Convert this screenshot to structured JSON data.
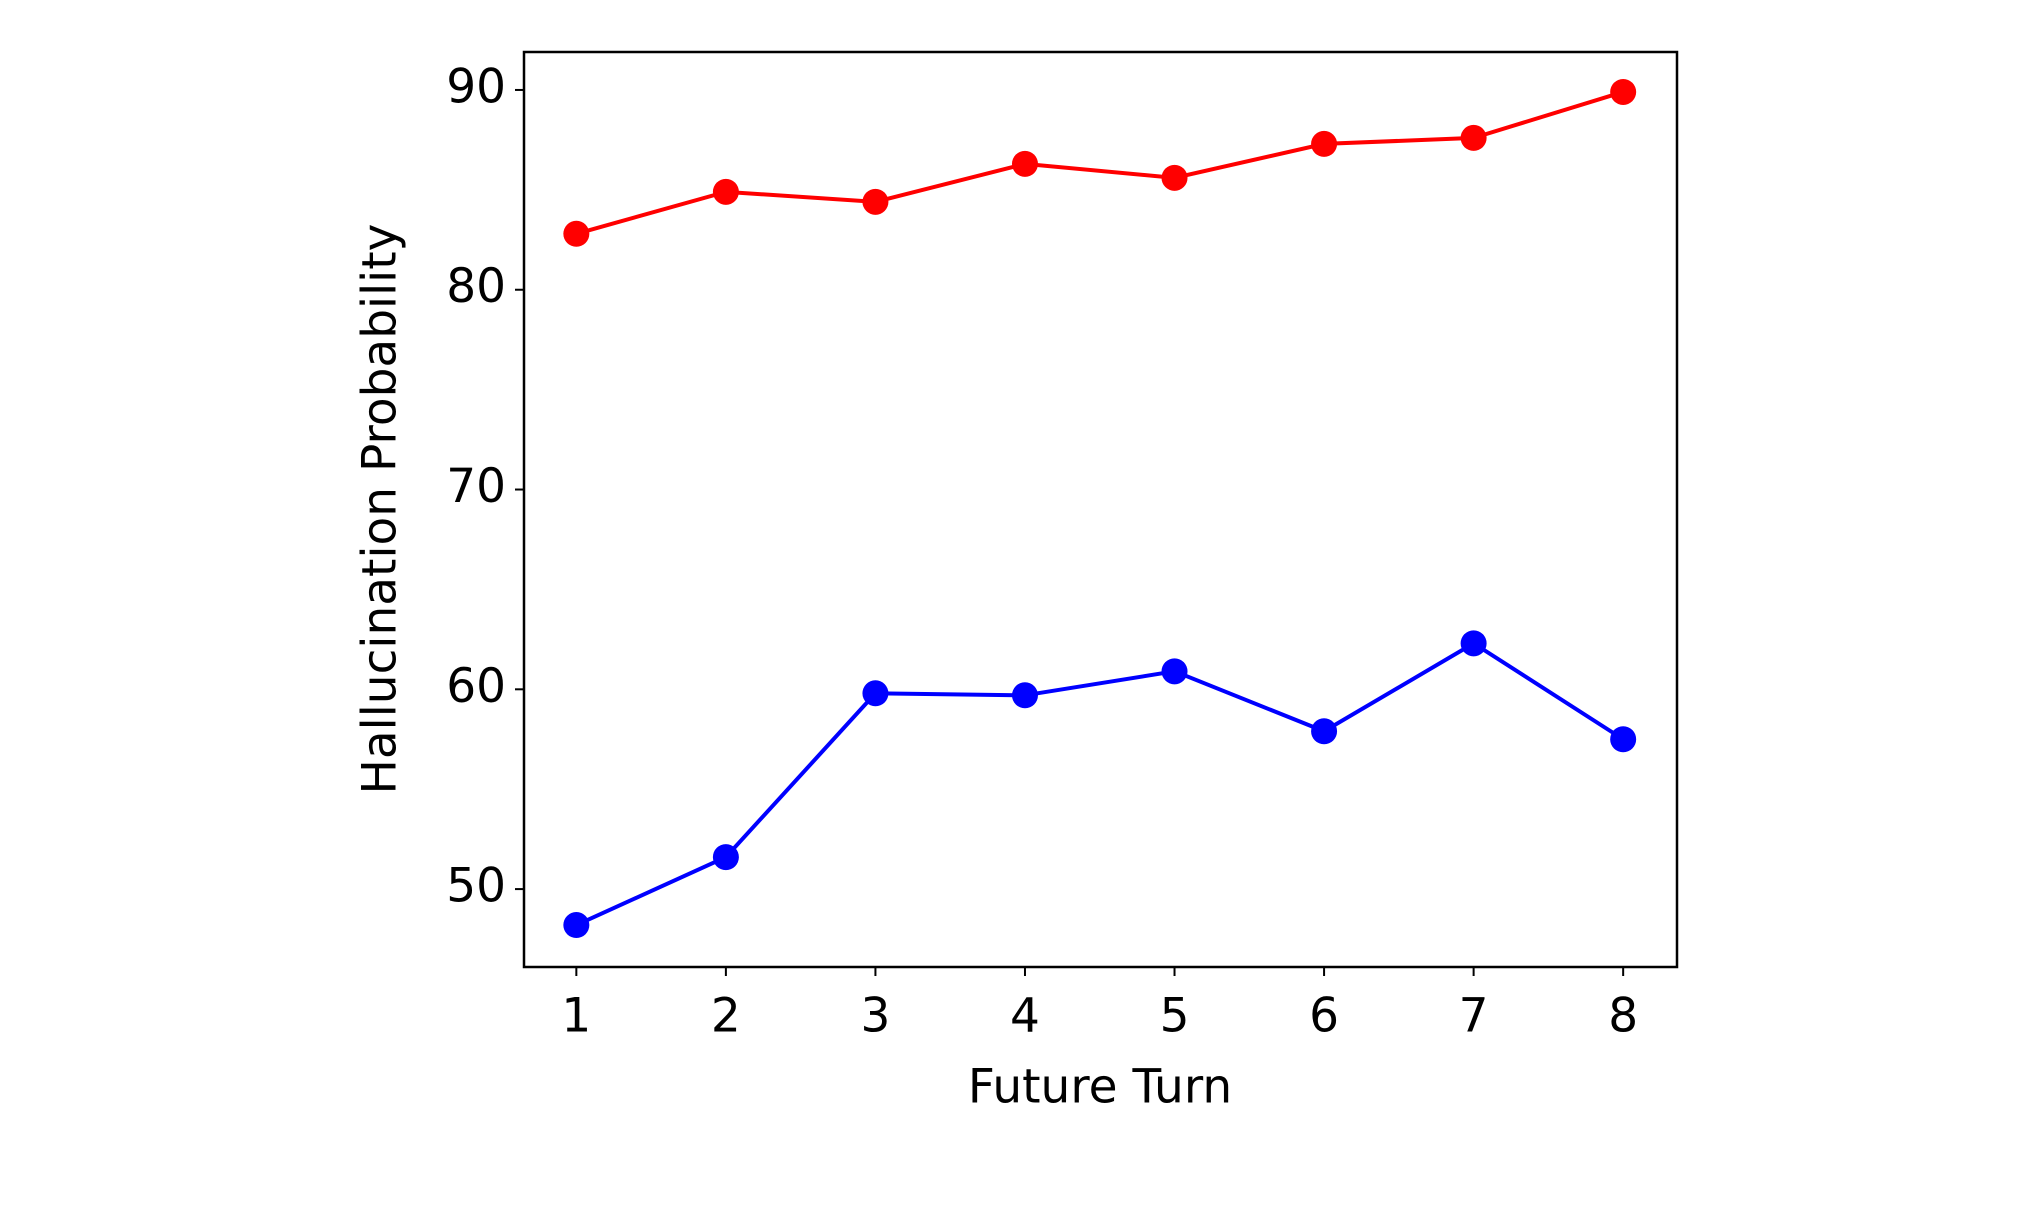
{
  "chart_data": {
    "type": "line",
    "x_label": "Future Turn",
    "y_label": "Hallucination Probability",
    "x": [
      1,
      2,
      3,
      4,
      5,
      6,
      7,
      8
    ],
    "series": [
      {
        "color": "#ff0000",
        "values": [
          82.8,
          84.9,
          84.4,
          86.3,
          85.6,
          87.3,
          87.6,
          89.9
        ]
      },
      {
        "color": "#0000ff",
        "values": [
          48.2,
          51.6,
          59.8,
          59.7,
          60.9,
          57.9,
          62.3,
          57.5
        ]
      }
    ],
    "xlim": [
      0.65,
      8.36
    ],
    "xticks": [
      1,
      2,
      3,
      4,
      5,
      6,
      7,
      8
    ],
    "ylim": [
      46.1,
      91.9
    ],
    "yticks": [
      50,
      60,
      70,
      80,
      90
    ],
    "grid": false
  }
}
